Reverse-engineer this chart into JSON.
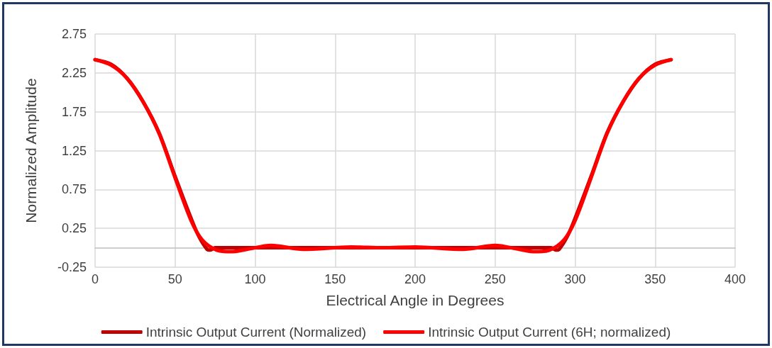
{
  "chart_data": {
    "type": "line",
    "xlabel": "Electrical Angle in Degrees",
    "ylabel": "Normalized Amplitude",
    "xlim": [
      0,
      400
    ],
    "xticks": [
      0,
      50,
      100,
      150,
      200,
      250,
      300,
      350,
      400
    ],
    "ylim": [
      -0.25,
      2.75
    ],
    "yticks": [
      -0.25,
      0.25,
      0.75,
      1.25,
      1.75,
      2.25,
      2.75
    ],
    "grid": true,
    "legend": "bottom",
    "marker": "none",
    "line_style": "solid",
    "series": [
      {
        "name": "Intrinsic Output Current (Normalized)",
        "color": "#c00000",
        "x": [
          0,
          10,
          20,
          30,
          40,
          50,
          60,
          65,
          70,
          72,
          75,
          100,
          150,
          200,
          250,
          285,
          288,
          290,
          295,
          300,
          310,
          320,
          330,
          340,
          350,
          360
        ],
        "values": [
          2.42,
          2.36,
          2.18,
          1.88,
          1.48,
          0.92,
          0.38,
          0.14,
          -0.02,
          -0.03,
          0,
          0,
          0,
          0,
          0,
          0,
          -0.03,
          -0.02,
          0.14,
          0.38,
          0.92,
          1.48,
          1.88,
          2.18,
          2.36,
          2.42
        ]
      },
      {
        "name": "Intrinsic Output Current (6H; normalized)",
        "color": "#ff0000",
        "x": [
          0,
          10,
          20,
          30,
          40,
          50,
          60,
          67,
          76,
          85,
          95,
          110,
          130,
          160,
          180,
          200,
          230,
          250,
          265,
          275,
          284,
          293,
          300,
          310,
          320,
          330,
          340,
          350,
          360
        ],
        "values": [
          2.42,
          2.35,
          2.18,
          1.88,
          1.47,
          0.9,
          0.35,
          0.1,
          -0.03,
          -0.05,
          -0.02,
          0.03,
          -0.02,
          0.01,
          0,
          0.01,
          -0.02,
          0.03,
          -0.02,
          -0.05,
          -0.03,
          0.1,
          0.35,
          0.9,
          1.47,
          1.88,
          2.18,
          2.35,
          2.42
        ]
      }
    ]
  }
}
